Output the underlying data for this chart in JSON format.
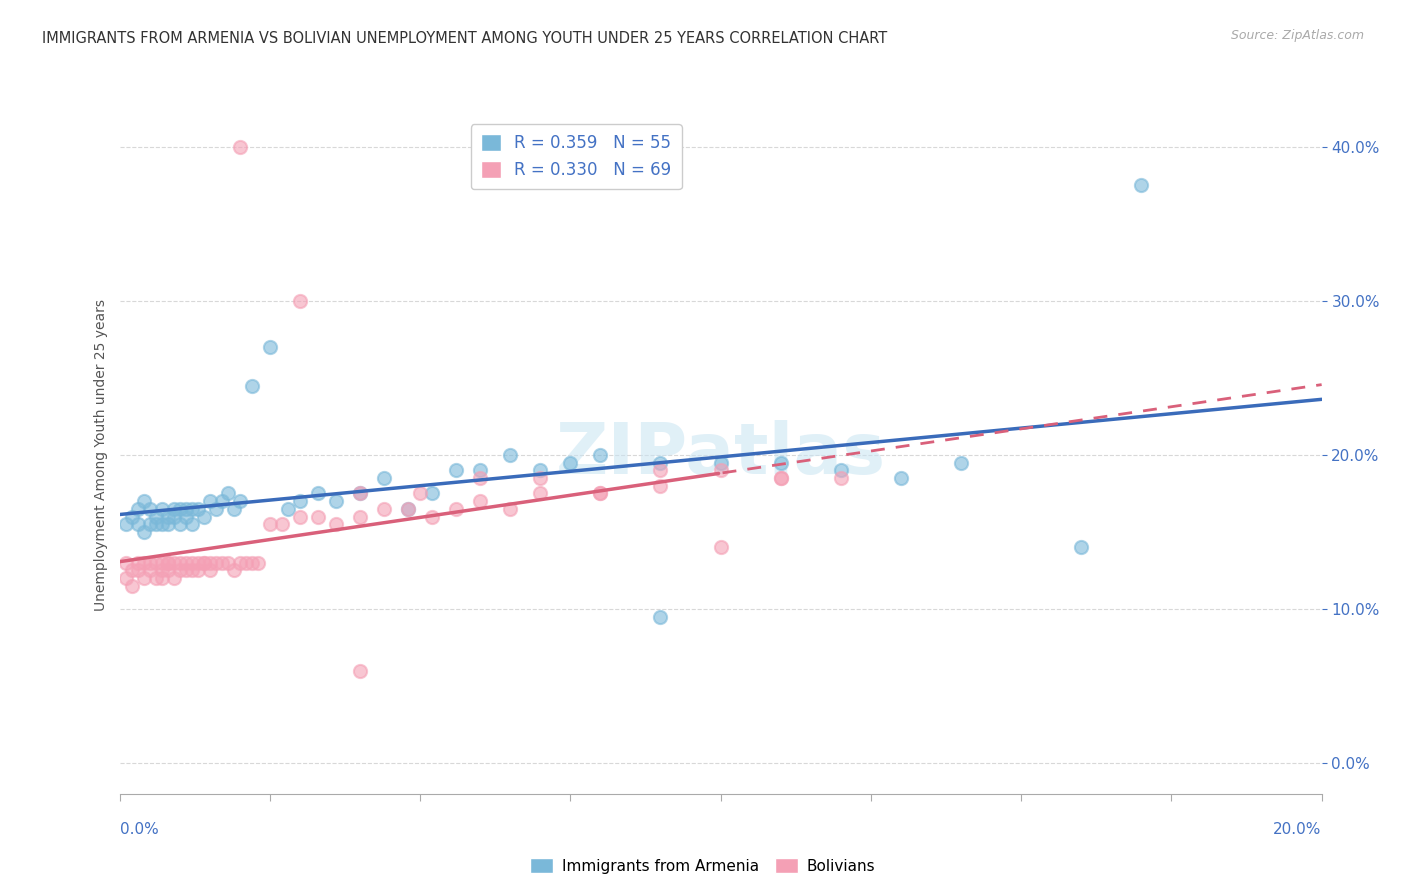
{
  "title": "IMMIGRANTS FROM ARMENIA VS BOLIVIAN UNEMPLOYMENT AMONG YOUTH UNDER 25 YEARS CORRELATION CHART",
  "source": "Source: ZipAtlas.com",
  "ylabel": "Unemployment Among Youth under 25 years",
  "legend_r": [
    {
      "label": "R = 0.359   N = 55",
      "color": "#7ab8d9"
    },
    {
      "label": "R = 0.330   N = 69",
      "color": "#f4a0b5"
    }
  ],
  "legend_labels": [
    "Immigrants from Armenia",
    "Bolivians"
  ],
  "watermark": "ZIPatlas",
  "xlim": [
    0.0,
    0.2
  ],
  "ylim": [
    -0.02,
    0.42
  ],
  "yticks": [
    0.0,
    0.1,
    0.2,
    0.3,
    0.4
  ],
  "background_color": "#ffffff",
  "grid_color": "#d8d8d8",
  "axis_color": "#4472c4",
  "scatter_blue_color": "#7ab8d9",
  "scatter_pink_color": "#f4a0b5",
  "trend_blue_color": "#3a6bba",
  "trend_pink_color": "#d9607a",
  "armenia_x": [
    0.001,
    0.002,
    0.003,
    0.003,
    0.004,
    0.004,
    0.005,
    0.005,
    0.006,
    0.006,
    0.007,
    0.007,
    0.008,
    0.008,
    0.009,
    0.009,
    0.01,
    0.01,
    0.011,
    0.011,
    0.012,
    0.012,
    0.013,
    0.014,
    0.015,
    0.016,
    0.017,
    0.018,
    0.019,
    0.02,
    0.022,
    0.025,
    0.028,
    0.03,
    0.033,
    0.036,
    0.04,
    0.044,
    0.048,
    0.052,
    0.056,
    0.06,
    0.065,
    0.07,
    0.075,
    0.08,
    0.09,
    0.1,
    0.11,
    0.12,
    0.13,
    0.14,
    0.09,
    0.16,
    0.17
  ],
  "armenia_y": [
    0.155,
    0.16,
    0.155,
    0.165,
    0.15,
    0.17,
    0.155,
    0.165,
    0.16,
    0.155,
    0.165,
    0.155,
    0.16,
    0.155,
    0.165,
    0.16,
    0.155,
    0.165,
    0.165,
    0.16,
    0.165,
    0.155,
    0.165,
    0.16,
    0.17,
    0.165,
    0.17,
    0.175,
    0.165,
    0.17,
    0.245,
    0.27,
    0.165,
    0.17,
    0.175,
    0.17,
    0.175,
    0.185,
    0.165,
    0.175,
    0.19,
    0.19,
    0.2,
    0.19,
    0.195,
    0.2,
    0.195,
    0.195,
    0.195,
    0.19,
    0.185,
    0.195,
    0.095,
    0.14,
    0.375
  ],
  "bolivia_x": [
    0.001,
    0.001,
    0.002,
    0.002,
    0.003,
    0.003,
    0.004,
    0.004,
    0.005,
    0.005,
    0.006,
    0.006,
    0.007,
    0.007,
    0.007,
    0.008,
    0.008,
    0.008,
    0.009,
    0.009,
    0.01,
    0.01,
    0.011,
    0.011,
    0.012,
    0.012,
    0.013,
    0.013,
    0.014,
    0.014,
    0.015,
    0.015,
    0.016,
    0.017,
    0.018,
    0.019,
    0.02,
    0.021,
    0.022,
    0.023,
    0.025,
    0.027,
    0.03,
    0.033,
    0.036,
    0.04,
    0.044,
    0.048,
    0.052,
    0.056,
    0.06,
    0.065,
    0.07,
    0.08,
    0.09,
    0.1,
    0.11,
    0.12,
    0.04,
    0.05,
    0.06,
    0.07,
    0.08,
    0.09,
    0.1,
    0.11,
    0.02,
    0.03,
    0.04
  ],
  "bolivia_y": [
    0.13,
    0.12,
    0.125,
    0.115,
    0.13,
    0.125,
    0.12,
    0.13,
    0.13,
    0.125,
    0.13,
    0.12,
    0.125,
    0.13,
    0.12,
    0.13,
    0.125,
    0.13,
    0.13,
    0.12,
    0.13,
    0.125,
    0.125,
    0.13,
    0.13,
    0.125,
    0.13,
    0.125,
    0.13,
    0.13,
    0.13,
    0.125,
    0.13,
    0.13,
    0.13,
    0.125,
    0.13,
    0.13,
    0.13,
    0.13,
    0.155,
    0.155,
    0.16,
    0.16,
    0.155,
    0.16,
    0.165,
    0.165,
    0.16,
    0.165,
    0.17,
    0.165,
    0.175,
    0.175,
    0.18,
    0.14,
    0.185,
    0.185,
    0.175,
    0.175,
    0.185,
    0.185,
    0.175,
    0.19,
    0.19,
    0.185,
    0.4,
    0.3,
    0.06
  ]
}
